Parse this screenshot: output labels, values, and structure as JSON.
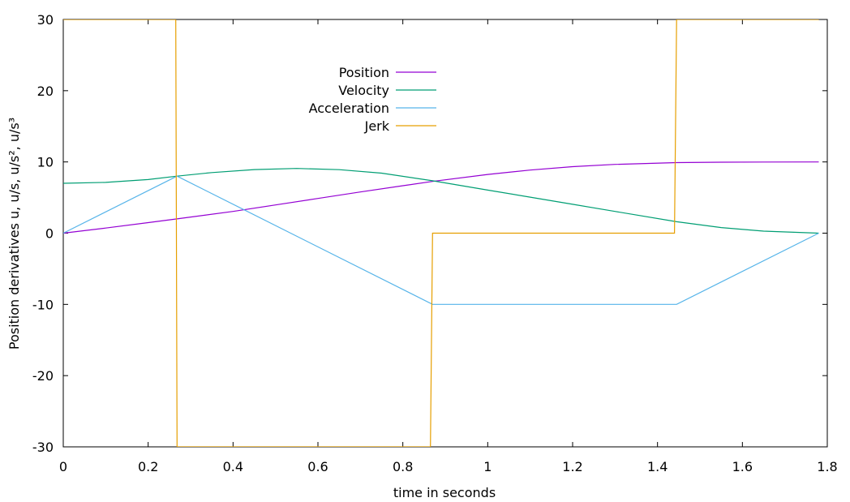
{
  "chart_data": {
    "type": "line",
    "xlabel": "time in seconds",
    "ylabel": "Position derivatives u, u/s, u/s², u/s³",
    "xlim": [
      0,
      1.8
    ],
    "ylim": [
      -30,
      30
    ],
    "xticks": [
      "0",
      "0.2",
      "0.4",
      "0.6",
      "0.8",
      "1",
      "1.2",
      "1.4",
      "1.6",
      "1.8"
    ],
    "yticks": [
      "30",
      "20",
      "10",
      "0",
      "-10",
      "-20",
      "-30"
    ],
    "grid": false,
    "legend_position": "top-left-center",
    "series": [
      {
        "name": "Position",
        "color": "#9400d3",
        "x": [
          0,
          0.1,
          0.2,
          0.268,
          0.4,
          0.5,
          0.6,
          0.7,
          0.8,
          0.87,
          1.0,
          1.1,
          1.2,
          1.3,
          1.445,
          1.55,
          1.65,
          1.78
        ],
        "y": [
          0,
          0.72,
          1.48,
          2.0,
          3.05,
          3.96,
          4.87,
          5.78,
          6.66,
          7.26,
          8.24,
          8.86,
          9.34,
          9.66,
          9.9,
          9.96,
          9.99,
          10.0
        ]
      },
      {
        "name": "Velocity",
        "color": "#009e73",
        "x": [
          0,
          0.1,
          0.2,
          0.268,
          0.35,
          0.45,
          0.55,
          0.65,
          0.75,
          0.87,
          1.0,
          1.1,
          1.2,
          1.3,
          1.445,
          1.55,
          1.65,
          1.78
        ],
        "y": [
          7.0,
          7.13,
          7.53,
          8.0,
          8.5,
          8.93,
          9.08,
          8.92,
          8.42,
          7.35,
          6.05,
          5.05,
          4.05,
          3.05,
          1.6,
          0.79,
          0.28,
          0.0
        ]
      },
      {
        "name": "Acceleration",
        "color": "#56b4e9",
        "x": [
          0,
          0.268,
          0.87,
          1.445,
          1.78
        ],
        "y": [
          0,
          8.0,
          -10.0,
          -10.0,
          0
        ]
      },
      {
        "name": "Jerk",
        "color": "#e69f00",
        "x": [
          0,
          0.255,
          0.265,
          0.268,
          0.855,
          0.865,
          0.87,
          1.435,
          1.44,
          1.445,
          1.455,
          1.78
        ],
        "y": [
          30,
          30,
          30,
          -30,
          -30,
          -30,
          0,
          0,
          0,
          30,
          30,
          30
        ]
      }
    ]
  }
}
